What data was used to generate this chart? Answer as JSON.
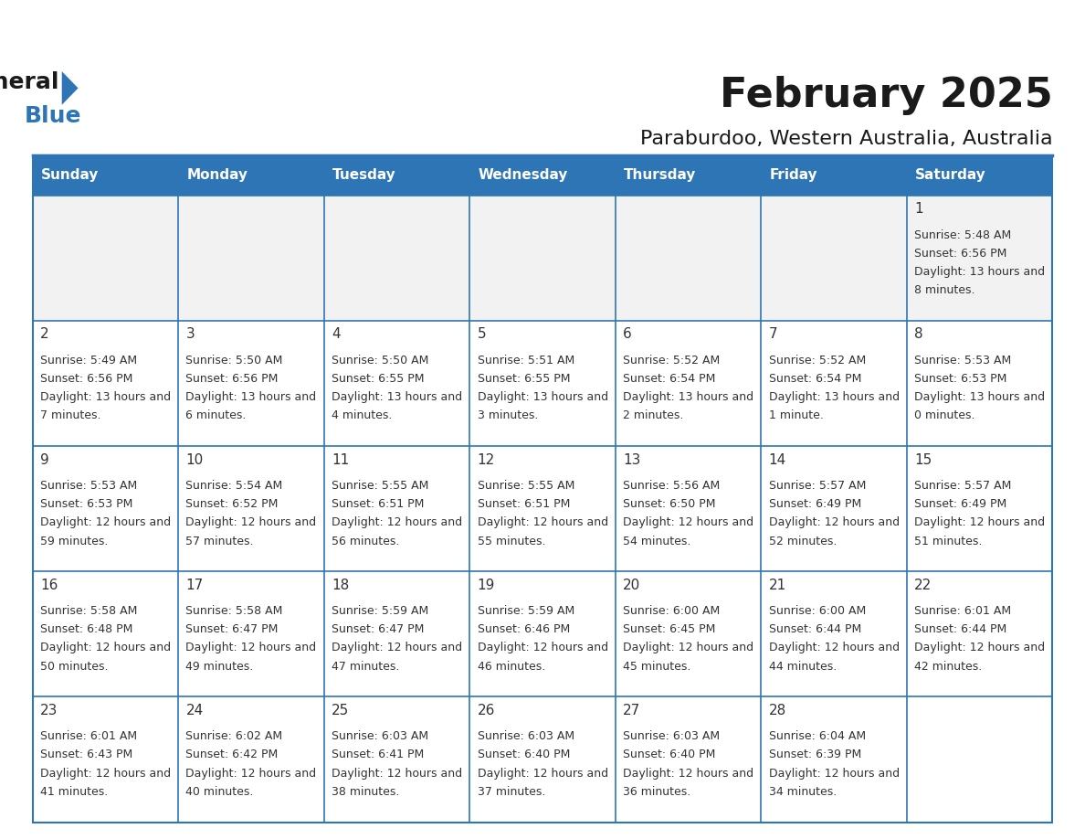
{
  "title": "February 2025",
  "subtitle": "Paraburdoo, Western Australia, Australia",
  "header_bg": "#2e75b6",
  "header_text_color": "#ffffff",
  "cell_bg_white": "#ffffff",
  "cell_bg_light": "#f2f2f2",
  "border_color": "#2e75b6",
  "day_headers": [
    "Sunday",
    "Monday",
    "Tuesday",
    "Wednesday",
    "Thursday",
    "Friday",
    "Saturday"
  ],
  "days": [
    {
      "day": 1,
      "col": 6,
      "row": 0,
      "sunrise": "5:48 AM",
      "sunset": "6:56 PM",
      "daylight": "13 hours and 8 minutes."
    },
    {
      "day": 2,
      "col": 0,
      "row": 1,
      "sunrise": "5:49 AM",
      "sunset": "6:56 PM",
      "daylight": "13 hours and 7 minutes."
    },
    {
      "day": 3,
      "col": 1,
      "row": 1,
      "sunrise": "5:50 AM",
      "sunset": "6:56 PM",
      "daylight": "13 hours and 6 minutes."
    },
    {
      "day": 4,
      "col": 2,
      "row": 1,
      "sunrise": "5:50 AM",
      "sunset": "6:55 PM",
      "daylight": "13 hours and 4 minutes."
    },
    {
      "day": 5,
      "col": 3,
      "row": 1,
      "sunrise": "5:51 AM",
      "sunset": "6:55 PM",
      "daylight": "13 hours and 3 minutes."
    },
    {
      "day": 6,
      "col": 4,
      "row": 1,
      "sunrise": "5:52 AM",
      "sunset": "6:54 PM",
      "daylight": "13 hours and 2 minutes."
    },
    {
      "day": 7,
      "col": 5,
      "row": 1,
      "sunrise": "5:52 AM",
      "sunset": "6:54 PM",
      "daylight": "13 hours and 1 minute."
    },
    {
      "day": 8,
      "col": 6,
      "row": 1,
      "sunrise": "5:53 AM",
      "sunset": "6:53 PM",
      "daylight": "13 hours and 0 minutes."
    },
    {
      "day": 9,
      "col": 0,
      "row": 2,
      "sunrise": "5:53 AM",
      "sunset": "6:53 PM",
      "daylight": "12 hours and 59 minutes."
    },
    {
      "day": 10,
      "col": 1,
      "row": 2,
      "sunrise": "5:54 AM",
      "sunset": "6:52 PM",
      "daylight": "12 hours and 57 minutes."
    },
    {
      "day": 11,
      "col": 2,
      "row": 2,
      "sunrise": "5:55 AM",
      "sunset": "6:51 PM",
      "daylight": "12 hours and 56 minutes."
    },
    {
      "day": 12,
      "col": 3,
      "row": 2,
      "sunrise": "5:55 AM",
      "sunset": "6:51 PM",
      "daylight": "12 hours and 55 minutes."
    },
    {
      "day": 13,
      "col": 4,
      "row": 2,
      "sunrise": "5:56 AM",
      "sunset": "6:50 PM",
      "daylight": "12 hours and 54 minutes."
    },
    {
      "day": 14,
      "col": 5,
      "row": 2,
      "sunrise": "5:57 AM",
      "sunset": "6:49 PM",
      "daylight": "12 hours and 52 minutes."
    },
    {
      "day": 15,
      "col": 6,
      "row": 2,
      "sunrise": "5:57 AM",
      "sunset": "6:49 PM",
      "daylight": "12 hours and 51 minutes."
    },
    {
      "day": 16,
      "col": 0,
      "row": 3,
      "sunrise": "5:58 AM",
      "sunset": "6:48 PM",
      "daylight": "12 hours and 50 minutes."
    },
    {
      "day": 17,
      "col": 1,
      "row": 3,
      "sunrise": "5:58 AM",
      "sunset": "6:47 PM",
      "daylight": "12 hours and 49 minutes."
    },
    {
      "day": 18,
      "col": 2,
      "row": 3,
      "sunrise": "5:59 AM",
      "sunset": "6:47 PM",
      "daylight": "12 hours and 47 minutes."
    },
    {
      "day": 19,
      "col": 3,
      "row": 3,
      "sunrise": "5:59 AM",
      "sunset": "6:46 PM",
      "daylight": "12 hours and 46 minutes."
    },
    {
      "day": 20,
      "col": 4,
      "row": 3,
      "sunrise": "6:00 AM",
      "sunset": "6:45 PM",
      "daylight": "12 hours and 45 minutes."
    },
    {
      "day": 21,
      "col": 5,
      "row": 3,
      "sunrise": "6:00 AM",
      "sunset": "6:44 PM",
      "daylight": "12 hours and 44 minutes."
    },
    {
      "day": 22,
      "col": 6,
      "row": 3,
      "sunrise": "6:01 AM",
      "sunset": "6:44 PM",
      "daylight": "12 hours and 42 minutes."
    },
    {
      "day": 23,
      "col": 0,
      "row": 4,
      "sunrise": "6:01 AM",
      "sunset": "6:43 PM",
      "daylight": "12 hours and 41 minutes."
    },
    {
      "day": 24,
      "col": 1,
      "row": 4,
      "sunrise": "6:02 AM",
      "sunset": "6:42 PM",
      "daylight": "12 hours and 40 minutes."
    },
    {
      "day": 25,
      "col": 2,
      "row": 4,
      "sunrise": "6:03 AM",
      "sunset": "6:41 PM",
      "daylight": "12 hours and 38 minutes."
    },
    {
      "day": 26,
      "col": 3,
      "row": 4,
      "sunrise": "6:03 AM",
      "sunset": "6:40 PM",
      "daylight": "12 hours and 37 minutes."
    },
    {
      "day": 27,
      "col": 4,
      "row": 4,
      "sunrise": "6:03 AM",
      "sunset": "6:40 PM",
      "daylight": "12 hours and 36 minutes."
    },
    {
      "day": 28,
      "col": 5,
      "row": 4,
      "sunrise": "6:04 AM",
      "sunset": "6:39 PM",
      "daylight": "12 hours and 34 minutes."
    }
  ],
  "num_rows": 5,
  "logo_text_general": "General",
  "logo_text_blue": "Blue"
}
